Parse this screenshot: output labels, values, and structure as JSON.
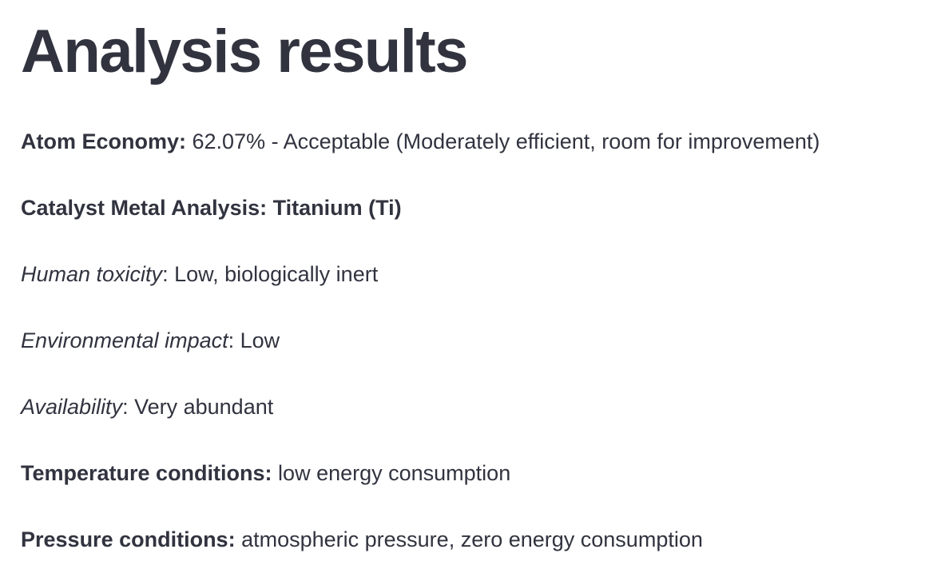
{
  "page": {
    "title": "Analysis results"
  },
  "results": {
    "atom_economy": {
      "label": "Atom Economy:",
      "value": " 62.07% - Acceptable (Moderately efficient, room for improvement)"
    },
    "catalyst": {
      "label": "Catalyst Metal Analysis: Titanium (Ti)"
    },
    "human_toxicity": {
      "label": "Human toxicity",
      "value": ": Low, biologically inert"
    },
    "environmental_impact": {
      "label": "Environmental impact",
      "value": ": Low"
    },
    "availability": {
      "label": "Availability",
      "value": ": Very abundant"
    },
    "temperature": {
      "label": "Temperature conditions:",
      "value": " low energy consumption"
    },
    "pressure": {
      "label": "Pressure conditions:",
      "value": " atmospheric pressure, zero energy consumption"
    }
  }
}
